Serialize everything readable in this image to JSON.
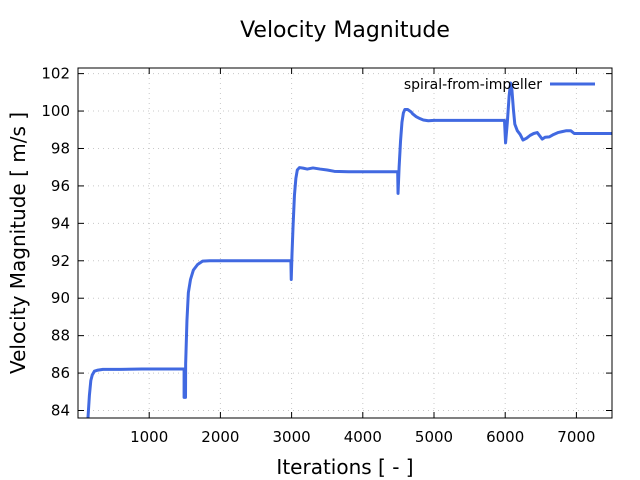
{
  "chart_data": {
    "type": "line",
    "title": "Velocity Magnitude",
    "xlabel": "Iterations [ - ]",
    "ylabel": "Velocity Magnitude [ m/s ]",
    "xlim": [
      0,
      7500
    ],
    "ylim": [
      83.6,
      102.3
    ],
    "xticks": [
      1000,
      2000,
      3000,
      4000,
      5000,
      6000,
      7000
    ],
    "yticks": [
      84,
      86,
      88,
      90,
      92,
      94,
      96,
      98,
      100,
      102
    ],
    "grid": true,
    "legend_position": "top-right",
    "series": [
      {
        "name": "spiral-from-impeller",
        "color": "#4169e1",
        "points": [
          [
            140,
            83.6
          ],
          [
            160,
            84.8
          ],
          [
            180,
            85.6
          ],
          [
            200,
            85.9
          ],
          [
            230,
            86.1
          ],
          [
            270,
            86.15
          ],
          [
            350,
            86.2
          ],
          [
            600,
            86.2
          ],
          [
            900,
            86.22
          ],
          [
            1200,
            86.22
          ],
          [
            1490,
            86.22
          ],
          [
            1490,
            84.7
          ],
          [
            1510,
            84.7
          ],
          [
            1512,
            86.5
          ],
          [
            1530,
            88.8
          ],
          [
            1550,
            90.3
          ],
          [
            1580,
            91.0
          ],
          [
            1620,
            91.5
          ],
          [
            1680,
            91.8
          ],
          [
            1750,
            91.98
          ],
          [
            1850,
            92.0
          ],
          [
            2100,
            92.0
          ],
          [
            2500,
            92.0
          ],
          [
            2990,
            92.0
          ],
          [
            2995,
            91.0
          ],
          [
            3005,
            92.3
          ],
          [
            3020,
            93.8
          ],
          [
            3040,
            95.5
          ],
          [
            3060,
            96.4
          ],
          [
            3080,
            96.85
          ],
          [
            3110,
            96.98
          ],
          [
            3160,
            96.95
          ],
          [
            3220,
            96.9
          ],
          [
            3300,
            96.96
          ],
          [
            3400,
            96.9
          ],
          [
            3500,
            96.85
          ],
          [
            3600,
            96.78
          ],
          [
            3800,
            96.76
          ],
          [
            4100,
            96.76
          ],
          [
            4300,
            96.76
          ],
          [
            4490,
            96.76
          ],
          [
            4495,
            95.6
          ],
          [
            4510,
            97.0
          ],
          [
            4530,
            98.4
          ],
          [
            4550,
            99.4
          ],
          [
            4570,
            99.9
          ],
          [
            4590,
            100.08
          ],
          [
            4630,
            100.08
          ],
          [
            4680,
            99.95
          ],
          [
            4700,
            99.85
          ],
          [
            4750,
            99.7
          ],
          [
            4800,
            99.6
          ],
          [
            4850,
            99.52
          ],
          [
            4920,
            99.48
          ],
          [
            5000,
            99.5
          ],
          [
            5300,
            99.5
          ],
          [
            5700,
            99.5
          ],
          [
            5990,
            99.5
          ],
          [
            6005,
            98.3
          ],
          [
            6030,
            99.4
          ],
          [
            6055,
            100.8
          ],
          [
            6075,
            101.5
          ],
          [
            6095,
            101.1
          ],
          [
            6115,
            100.1
          ],
          [
            6135,
            99.3
          ],
          [
            6170,
            98.95
          ],
          [
            6210,
            98.75
          ],
          [
            6250,
            98.45
          ],
          [
            6300,
            98.55
          ],
          [
            6350,
            98.7
          ],
          [
            6400,
            98.8
          ],
          [
            6450,
            98.85
          ],
          [
            6480,
            98.7
          ],
          [
            6520,
            98.5
          ],
          [
            6560,
            98.6
          ],
          [
            6620,
            98.62
          ],
          [
            6680,
            98.75
          ],
          [
            6740,
            98.85
          ],
          [
            6800,
            98.9
          ],
          [
            6860,
            98.95
          ],
          [
            6920,
            98.95
          ],
          [
            6970,
            98.8
          ],
          [
            7000,
            98.8
          ],
          [
            7200,
            98.8
          ],
          [
            7500,
            98.8
          ]
        ]
      }
    ]
  }
}
